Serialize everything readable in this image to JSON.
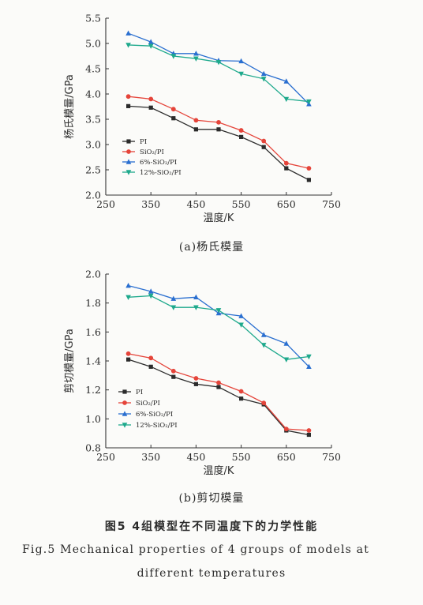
{
  "chart_data": [
    {
      "type": "line",
      "subcaption": "(a)杨氏模量",
      "xlabel": "温度/K",
      "ylabel": "杨氏模量/GPa",
      "xlim": [
        250,
        750
      ],
      "ylim": [
        2.0,
        5.5
      ],
      "xticks": [
        250,
        350,
        450,
        550,
        650,
        750
      ],
      "yticks": [
        2.0,
        2.5,
        3.0,
        3.5,
        4.0,
        4.5,
        5.0,
        5.5
      ],
      "ytick_labels": [
        "2.0",
        "2.5",
        "3.0",
        "3.5",
        "4.0",
        "4.5",
        "5.0",
        "5.5"
      ],
      "grid": false,
      "legend_position": "lower-left",
      "x": [
        300,
        350,
        400,
        450,
        500,
        550,
        600,
        650,
        700
      ],
      "series": [
        {
          "name": "PI",
          "color": "#2b2b2b",
          "marker": "square",
          "values": [
            3.76,
            3.73,
            3.52,
            3.3,
            3.3,
            3.15,
            2.95,
            2.53,
            2.3
          ]
        },
        {
          "name": "SiO₂/PI",
          "color": "#e5443a",
          "marker": "circle",
          "values": [
            3.95,
            3.9,
            3.7,
            3.48,
            3.44,
            3.28,
            3.07,
            2.63,
            2.53
          ]
        },
        {
          "name": "6%-SiO₂/PI",
          "color": "#2a6fd0",
          "marker": "triangle-up",
          "values": [
            5.2,
            5.03,
            4.8,
            4.8,
            4.66,
            4.65,
            4.4,
            4.25,
            3.8
          ]
        },
        {
          "name": "12%-SiO₂/PI",
          "color": "#1ea98c",
          "marker": "triangle-down",
          "values": [
            4.97,
            4.95,
            4.75,
            4.7,
            4.63,
            4.4,
            4.3,
            3.9,
            3.85
          ]
        }
      ]
    },
    {
      "type": "line",
      "subcaption": "(b)剪切模量",
      "xlabel": "温度/K",
      "ylabel": "剪切模量/GPa",
      "xlim": [
        250,
        750
      ],
      "ylim": [
        0.8,
        2.0
      ],
      "xticks": [
        250,
        350,
        450,
        550,
        650,
        750
      ],
      "yticks": [
        0.8,
        1.0,
        1.2,
        1.4,
        1.6,
        1.8,
        2.0
      ],
      "ytick_labels": [
        "0.8",
        "1.0",
        "1.2",
        "1.4",
        "1.6",
        "1.8",
        "2.0"
      ],
      "grid": false,
      "legend_position": "lower-left",
      "x": [
        300,
        350,
        400,
        450,
        500,
        550,
        600,
        650,
        700
      ],
      "series": [
        {
          "name": "PI",
          "color": "#2b2b2b",
          "marker": "square",
          "values": [
            1.41,
            1.36,
            1.29,
            1.24,
            1.22,
            1.14,
            1.1,
            0.92,
            0.89
          ]
        },
        {
          "name": "SiO₂/PI",
          "color": "#e5443a",
          "marker": "circle",
          "values": [
            1.45,
            1.42,
            1.33,
            1.28,
            1.25,
            1.19,
            1.11,
            0.93,
            0.92
          ]
        },
        {
          "name": "6%-SiO₂/PI",
          "color": "#2a6fd0",
          "marker": "triangle-up",
          "values": [
            1.92,
            1.88,
            1.83,
            1.84,
            1.73,
            1.71,
            1.58,
            1.52,
            1.36
          ]
        },
        {
          "name": "12%-SiO₂/PI",
          "color": "#1ea98c",
          "marker": "triangle-down",
          "values": [
            1.84,
            1.85,
            1.77,
            1.77,
            1.75,
            1.65,
            1.51,
            1.41,
            1.43
          ]
        }
      ]
    }
  ],
  "captions": {
    "cn": "图5  4组模型在不同温度下的力学性能",
    "en_line1": "Fig.5    Mechanical properties of 4 groups of models at",
    "en_line2": "different temperatures"
  }
}
